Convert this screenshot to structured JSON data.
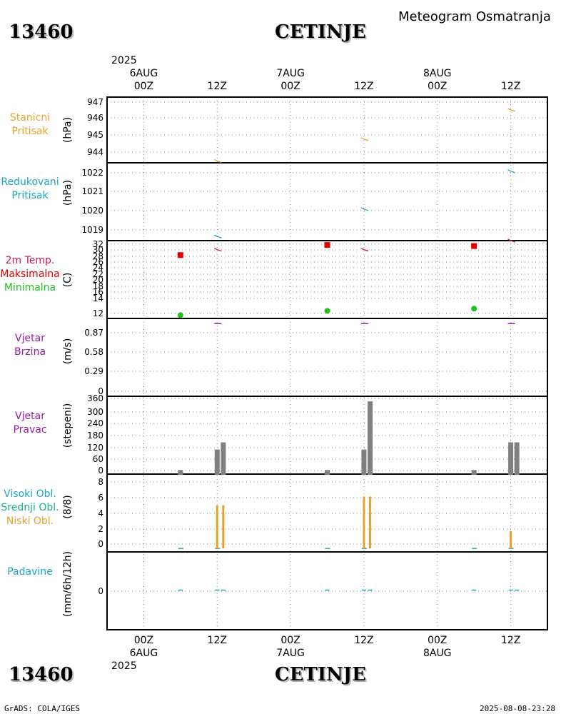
{
  "header": {
    "station_id": "13460",
    "station_name": "CETINJE",
    "title": "Meteogram Osmatranja"
  },
  "footer": {
    "station_id": "13460",
    "station_name": "CETINJE",
    "credit": "GrADS: COLA/IGES",
    "timestamp": "2025-08-08-23:28"
  },
  "time_axis": {
    "top_year": "2025",
    "bottom_year": "2025",
    "ticks": [
      {
        "hour": "00Z",
        "date": "6AUG"
      },
      {
        "hour": "12Z",
        "date": ""
      },
      {
        "hour": "00Z",
        "date": "7AUG"
      },
      {
        "hour": "12Z",
        "date": ""
      },
      {
        "hour": "00Z",
        "date": "8AUG"
      },
      {
        "hour": "12Z",
        "date": ""
      }
    ]
  },
  "panels": [
    {
      "label_lines": [
        "Stanicni",
        "Pritisak"
      ],
      "label_color": "#e8a22a",
      "unit": "(hPa)",
      "yticks": [
        "947",
        "946",
        "945",
        "944"
      ]
    },
    {
      "label_lines": [
        "Redukovani",
        "Pritisak"
      ],
      "label_color": "#1aa6c4",
      "unit": "(hPa)",
      "yticks": [
        "1022",
        "1021",
        "1020",
        "1019"
      ]
    },
    {
      "label_lines": [
        "2m Temp."
      ],
      "label_color": "#c8185a",
      "unit": "(C)",
      "extra_lines": [
        {
          "text": "Maksimalna",
          "color": "#e00000"
        },
        {
          "text": "Minimalna",
          "color": "#20c020"
        }
      ],
      "yticks": [
        "32",
        "30",
        "28",
        "26",
        "24",
        "22",
        "20",
        "18",
        "16",
        "14",
        "12"
      ]
    },
    {
      "label_lines": [
        "Vjetar",
        "Brzina"
      ],
      "label_color": "#9a1aa6",
      "unit": "(m/s)",
      "yticks": [
        "0.87",
        "0.58",
        "0.29",
        "0"
      ]
    },
    {
      "label_lines": [
        "Vjetar",
        "Pravac"
      ],
      "label_color": "#9a1aa6",
      "unit": "(stepeni)",
      "yticks": [
        "360",
        "300",
        "240",
        "180",
        "120",
        "60",
        "0"
      ]
    },
    {
      "label_lines": [
        "Visoki Obl."
      ],
      "label_color": "#1aa6c4",
      "unit": "(8/8)",
      "extra_lines": [
        {
          "text": "Srednji Obl.",
          "color": "#1ab08a"
        },
        {
          "text": "Niski Obl.",
          "color": "#e8a22a"
        }
      ],
      "yticks": [
        "8",
        "6",
        "4",
        "2",
        "0"
      ]
    },
    {
      "label_lines": [
        "Padavine"
      ],
      "label_color": "#1aa6c4",
      "unit": "(mm/6h/12h)",
      "yticks": [
        "0"
      ]
    }
  ],
  "chart_data": {
    "type": "meteogram",
    "x_unit": "hours since 2025-08-06 00Z",
    "xlim": [
      -6,
      66
    ],
    "station_pressure": {
      "ylim": [
        943.7,
        947.3
      ],
      "color": "#e8a22a",
      "points": [
        {
          "t": 12,
          "v": 943.8
        },
        {
          "t": 36,
          "v": 945.0
        },
        {
          "t": 60,
          "v": 946.6
        }
      ]
    },
    "reduced_pressure": {
      "ylim": [
        1018.6,
        1022.3
      ],
      "color": "#1aa6c4",
      "points": [
        {
          "t": 12,
          "v": 1018.8
        },
        {
          "t": 36,
          "v": 1020.1
        },
        {
          "t": 60,
          "v": 1021.9
        }
      ]
    },
    "temperature": {
      "ylim": [
        11,
        32.5
      ],
      "t2m": {
        "color": "#c8185a",
        "points": [
          {
            "t": 12,
            "v": 30.0
          },
          {
            "t": 36,
            "v": 30.0
          },
          {
            "t": 60,
            "v": 32.5
          }
        ]
      },
      "tmax": {
        "color": "#e00000",
        "points": [
          {
            "t": 6,
            "v": 28.5
          },
          {
            "t": 30,
            "v": 31.3
          },
          {
            "t": 54,
            "v": 31.0
          }
        ]
      },
      "tmin": {
        "color": "#20c020",
        "points": [
          {
            "t": 6,
            "v": 11.9
          },
          {
            "t": 30,
            "v": 13.1
          },
          {
            "t": 54,
            "v": 13.7
          }
        ]
      }
    },
    "wind_speed": {
      "ylim": [
        0,
        1.0
      ],
      "color": "#9a1aa6",
      "points": [
        {
          "t": 12,
          "v": 0.97
        },
        {
          "t": 36,
          "v": 0.97
        },
        {
          "t": 60,
          "v": 0.97
        }
      ]
    },
    "wind_direction": {
      "ylim": [
        -10,
        370
      ],
      "bar_color": "#808080",
      "bars": [
        {
          "t": 6,
          "v": 10
        },
        {
          "t": 12,
          "v": 110
        },
        {
          "t": 13,
          "v": 145
        },
        {
          "t": 30,
          "v": 10
        },
        {
          "t": 36,
          "v": 110
        },
        {
          "t": 37,
          "v": 345
        },
        {
          "t": 54,
          "v": 10
        },
        {
          "t": 60,
          "v": 145
        },
        {
          "t": 61,
          "v": 145
        }
      ]
    },
    "clouds": {
      "ylim": [
        -0.4,
        8.6
      ],
      "low": {
        "color": "#e8a22a",
        "bars": [
          {
            "t": 12,
            "v": 5
          },
          {
            "t": 13,
            "v": 5
          },
          {
            "t": 36,
            "v": 6
          },
          {
            "t": 37,
            "v": 6
          },
          {
            "t": 60,
            "v": 2
          }
        ]
      },
      "medium": {
        "color": "#1ab08a",
        "bars": [
          {
            "t": 6,
            "v": 0
          },
          {
            "t": 12,
            "v": 0
          },
          {
            "t": 30,
            "v": 0
          },
          {
            "t": 36,
            "v": 0
          },
          {
            "t": 54,
            "v": 0
          },
          {
            "t": 60,
            "v": 0
          }
        ]
      }
    },
    "precipitation": {
      "ylim": [
        -1,
        1
      ],
      "color": "#1aa6c4",
      "points": [
        {
          "t": 6,
          "v": 0
        },
        {
          "t": 12,
          "v": 0
        },
        {
          "t": 13,
          "v": 0
        },
        {
          "t": 30,
          "v": 0
        },
        {
          "t": 36,
          "v": 0
        },
        {
          "t": 37,
          "v": 0
        },
        {
          "t": 54,
          "v": 0
        },
        {
          "t": 60,
          "v": 0
        },
        {
          "t": 61,
          "v": 0
        }
      ]
    }
  }
}
